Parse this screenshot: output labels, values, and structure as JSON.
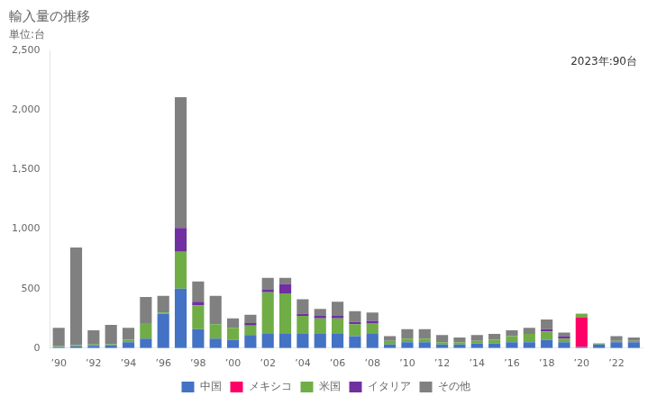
{
  "chart_data": {
    "type": "bar",
    "title": "輸入量の推移",
    "subtitle": "単位:台",
    "annotations": [
      "2023年:90台"
    ],
    "categories": [
      "’90",
      null,
      "’92",
      null,
      "’94",
      null,
      "’96",
      null,
      "’98",
      null,
      "’00",
      null,
      "’02",
      null,
      "’04",
      null,
      "’06",
      null,
      "’08",
      null,
      "’10",
      null,
      "’12",
      null,
      "’14",
      null,
      "’16",
      null,
      "’18",
      null,
      "’20",
      null,
      "’22",
      null
    ],
    "series": [
      {
        "name": "中国",
        "color": "#4472c4",
        "values": [
          10,
          15,
          20,
          25,
          50,
          80,
          290,
          500,
          160,
          80,
          70,
          110,
          120,
          120,
          120,
          120,
          120,
          100,
          120,
          30,
          50,
          50,
          30,
          30,
          40,
          40,
          50,
          50,
          70,
          50,
          10,
          30,
          50,
          50
        ]
      },
      {
        "name": "メキシコ",
        "color": "#ff0066",
        "values": [
          0,
          0,
          0,
          0,
          0,
          0,
          0,
          0,
          0,
          0,
          0,
          0,
          0,
          0,
          0,
          0,
          0,
          0,
          0,
          0,
          0,
          0,
          0,
          0,
          0,
          0,
          0,
          0,
          0,
          0,
          250,
          0,
          0,
          0
        ]
      },
      {
        "name": "米国",
        "color": "#70ad47",
        "values": [
          10,
          10,
          10,
          10,
          20,
          130,
          10,
          310,
          200,
          120,
          100,
          80,
          350,
          340,
          150,
          130,
          130,
          100,
          90,
          30,
          30,
          30,
          20,
          20,
          20,
          30,
          50,
          70,
          70,
          30,
          30,
          10,
          10,
          10
        ]
      },
      {
        "name": "イタリア",
        "color": "#7030a0",
        "values": [
          0,
          0,
          0,
          0,
          0,
          0,
          0,
          200,
          30,
          0,
          0,
          20,
          20,
          80,
          20,
          20,
          20,
          20,
          20,
          0,
          0,
          0,
          0,
          0,
          0,
          0,
          0,
          0,
          20,
          20,
          0,
          0,
          0,
          0
        ]
      },
      {
        "name": "その他",
        "color": "#808080",
        "values": [
          150,
          820,
          120,
          160,
          100,
          220,
          140,
          1100,
          170,
          240,
          80,
          70,
          100,
          50,
          120,
          60,
          120,
          90,
          70,
          40,
          80,
          80,
          60,
          40,
          50,
          50,
          50,
          50,
          80,
          30,
          0,
          0,
          40,
          30
        ]
      }
    ],
    "stacked": true,
    "ylim": [
      0,
      2500
    ],
    "yticks": [
      0,
      500,
      {
        "value": 1000,
        "label": "1,000"
      },
      {
        "value": 1500,
        "label": "1,500"
      },
      {
        "value": 2000,
        "label": "2,000"
      },
      {
        "value": 2500,
        "label": "2,500"
      }
    ],
    "grid": false,
    "legend": "bottom"
  }
}
